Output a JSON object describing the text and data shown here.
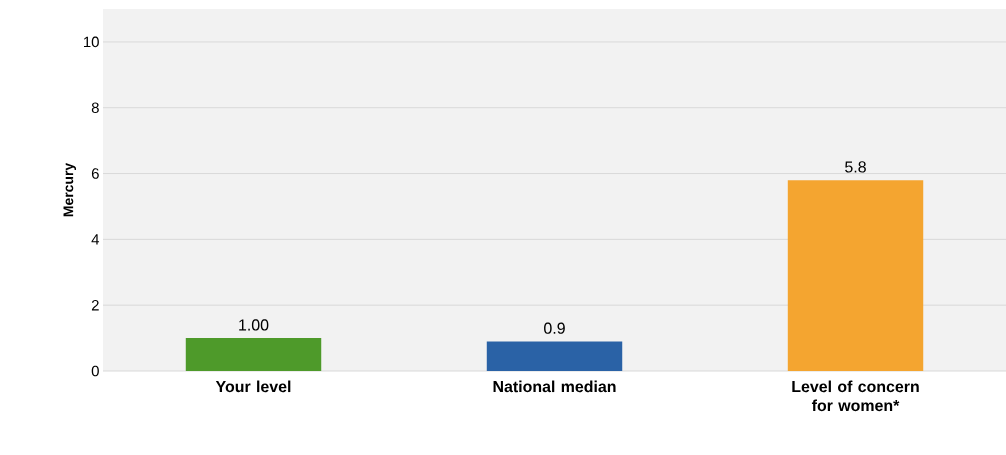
{
  "chart_data": {
    "type": "bar",
    "ylabel": "Mercury",
    "categories": [
      "Your level",
      "National median",
      "Level of concern for women*"
    ],
    "values": [
      1.0,
      0.9,
      5.8
    ],
    "colors": [
      "#4e9a2a",
      "#2a62a6",
      "#f4a530"
    ],
    "value_labels": [
      "1.00",
      "0.9",
      "5.8"
    ],
    "ylim": [
      0,
      11
    ],
    "yticks": [
      0,
      2,
      4,
      6,
      8,
      10
    ],
    "grid": "y"
  }
}
